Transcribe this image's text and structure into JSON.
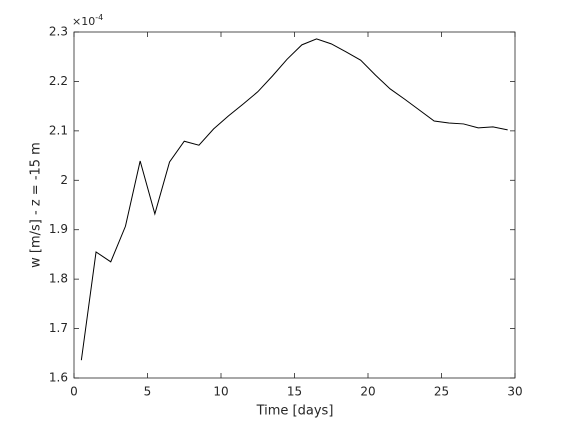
{
  "chart_data": {
    "type": "line",
    "x_label": "Time [days]",
    "y_label": "w [m/s] - z = -15 m",
    "y_multiplier": {
      "base": "×10",
      "exponent": "-4"
    },
    "x": [
      0.5,
      1.5,
      2.5,
      3.5,
      4.5,
      5.5,
      6.5,
      7.5,
      8.5,
      9.5,
      10.5,
      11.5,
      12.5,
      13.5,
      14.5,
      15.5,
      16.5,
      17.5,
      18.5,
      19.5,
      20.5,
      21.5,
      22.5,
      23.5,
      24.5,
      25.5,
      26.5,
      27.5,
      28.5,
      29.5
    ],
    "series": [
      {
        "color": "#000000",
        "values": [
          1.636,
          1.855,
          1.835,
          1.907,
          2.039,
          1.932,
          2.037,
          2.079,
          2.071,
          2.104,
          2.13,
          2.154,
          2.179,
          2.211,
          2.245,
          2.274,
          2.286,
          2.276,
          2.26,
          2.243,
          2.213,
          2.185,
          2.164,
          2.142,
          2.12,
          2.116,
          2.114,
          2.106,
          2.108,
          2.102
        ]
      }
    ],
    "xlim": [
      0,
      30
    ],
    "xticks": [
      0,
      5,
      10,
      15,
      20,
      25,
      30
    ],
    "ylim": [
      1.6,
      2.3
    ],
    "yticks": [
      1.6,
      1.7,
      1.8,
      1.9,
      2,
      2.1,
      2.2,
      2.3
    ],
    "grid": false
  }
}
